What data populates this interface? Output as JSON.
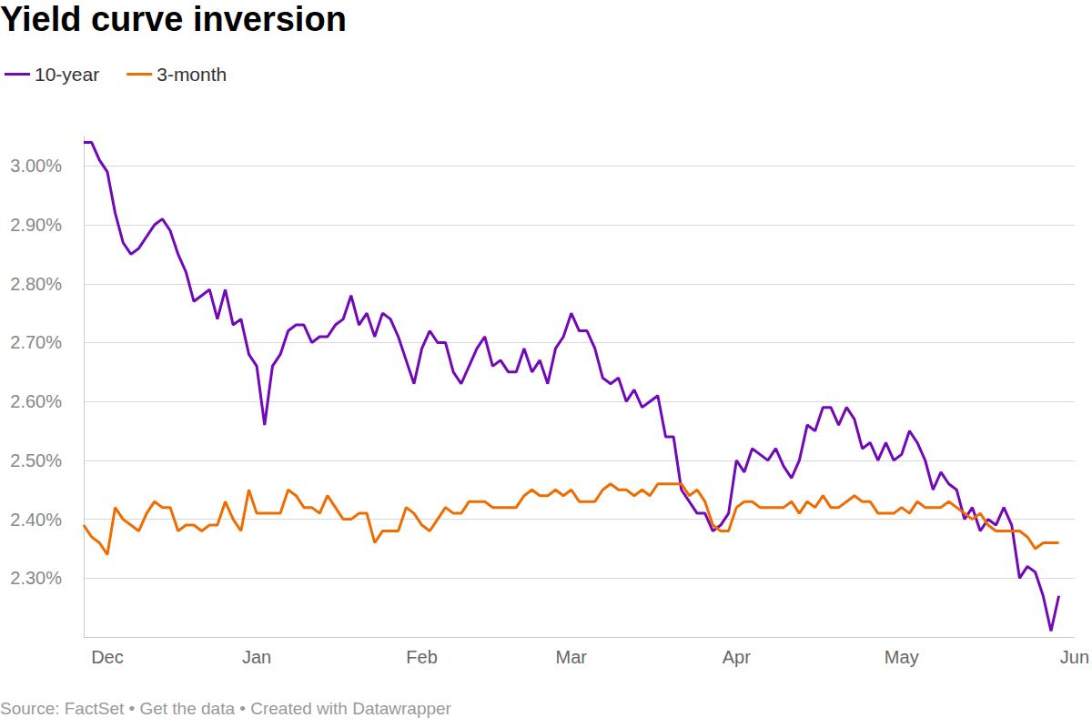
{
  "chart_data": {
    "type": "line",
    "title": "Yield curve inversion",
    "footer": "Source: FactSet • Get the data • Created with Datawrapper",
    "legend": "top-left",
    "grid": true,
    "categories": [
      null,
      null,
      null,
      "Dec",
      null,
      null,
      null,
      null,
      null,
      null,
      null,
      null,
      null,
      null,
      null,
      null,
      null,
      null,
      null,
      null,
      null,
      null,
      "Jan",
      null,
      null,
      null,
      null,
      null,
      null,
      null,
      null,
      null,
      null,
      null,
      null,
      null,
      null,
      null,
      null,
      null,
      null,
      null,
      null,
      "Feb",
      null,
      null,
      null,
      null,
      null,
      null,
      null,
      null,
      null,
      null,
      null,
      null,
      null,
      null,
      null,
      null,
      null,
      null,
      "Mar",
      null,
      null,
      null,
      null,
      null,
      null,
      null,
      null,
      null,
      null,
      null,
      null,
      null,
      null,
      null,
      null,
      null,
      null,
      null,
      null,
      "Apr",
      null,
      null,
      null,
      null,
      null,
      null,
      null,
      null,
      null,
      null,
      null,
      null,
      null,
      null,
      null,
      null,
      null,
      null,
      null,
      null,
      "May",
      null,
      null,
      null,
      null,
      null,
      null,
      null,
      null,
      null,
      null,
      null,
      null,
      null,
      null,
      null,
      null,
      null,
      null,
      null,
      null,
      null,
      "Jun"
    ],
    "series": [
      {
        "name": "10-year",
        "color": "#7209b7",
        "values": [
          3.04,
          3.04,
          3.01,
          2.99,
          2.92,
          2.87,
          2.85,
          2.86,
          2.88,
          2.9,
          2.91,
          2.89,
          2.85,
          2.82,
          2.77,
          2.78,
          2.79,
          2.74,
          2.79,
          2.73,
          2.74,
          2.68,
          2.66,
          2.56,
          2.66,
          2.68,
          2.72,
          2.73,
          2.73,
          2.7,
          2.71,
          2.71,
          2.73,
          2.74,
          2.78,
          2.73,
          2.75,
          2.71,
          2.75,
          2.74,
          2.71,
          2.67,
          2.63,
          2.69,
          2.72,
          2.7,
          2.7,
          2.65,
          2.63,
          2.66,
          2.69,
          2.71,
          2.66,
          2.67,
          2.65,
          2.65,
          2.69,
          2.65,
          2.67,
          2.63,
          2.69,
          2.71,
          2.75,
          2.72,
          2.72,
          2.69,
          2.64,
          2.63,
          2.64,
          2.6,
          2.62,
          2.59,
          2.6,
          2.61,
          2.54,
          2.54,
          2.45,
          2.43,
          2.41,
          2.41,
          2.38,
          2.39,
          2.41,
          2.5,
          2.48,
          2.52,
          2.51,
          2.5,
          2.52,
          2.49,
          2.47,
          2.5,
          2.56,
          2.55,
          2.59,
          2.59,
          2.56,
          2.59,
          2.57,
          2.52,
          2.53,
          2.5,
          2.53,
          2.5,
          2.51,
          2.55,
          2.53,
          2.5,
          2.45,
          2.48,
          2.46,
          2.45,
          2.4,
          2.42,
          2.38,
          2.4,
          2.39,
          2.42,
          2.39,
          2.3,
          2.32,
          2.31,
          2.27,
          2.21,
          2.27,
          null,
          null
        ]
      },
      {
        "name": "3-month",
        "color": "#ef6c00",
        "values": [
          2.39,
          2.37,
          2.36,
          2.34,
          2.42,
          2.4,
          2.39,
          2.38,
          2.41,
          2.43,
          2.42,
          2.42,
          2.38,
          2.39,
          2.39,
          2.38,
          2.39,
          2.39,
          2.43,
          2.4,
          2.38,
          2.45,
          2.41,
          2.41,
          2.41,
          2.41,
          2.45,
          2.44,
          2.42,
          2.42,
          2.41,
          2.44,
          2.42,
          2.4,
          2.4,
          2.41,
          2.41,
          2.36,
          2.38,
          2.38,
          2.38,
          2.42,
          2.41,
          2.39,
          2.38,
          2.4,
          2.42,
          2.41,
          2.41,
          2.43,
          2.43,
          2.43,
          2.42,
          2.42,
          2.42,
          2.42,
          2.44,
          2.45,
          2.44,
          2.44,
          2.45,
          2.44,
          2.45,
          2.43,
          2.43,
          2.43,
          2.45,
          2.46,
          2.45,
          2.45,
          2.44,
          2.45,
          2.44,
          2.46,
          2.46,
          2.46,
          2.46,
          2.44,
          2.45,
          2.43,
          2.39,
          2.38,
          2.38,
          2.42,
          2.43,
          2.43,
          2.42,
          2.42,
          2.42,
          2.42,
          2.43,
          2.41,
          2.43,
          2.42,
          2.44,
          2.42,
          2.42,
          2.43,
          2.44,
          2.43,
          2.43,
          2.41,
          2.41,
          2.41,
          2.42,
          2.41,
          2.43,
          2.42,
          2.42,
          2.42,
          2.43,
          2.42,
          2.41,
          2.4,
          2.41,
          2.39,
          2.38,
          2.38,
          2.38,
          2.38,
          2.37,
          2.35,
          2.36,
          2.36,
          2.36,
          null,
          null
        ]
      }
    ],
    "ylim": [
      2.2,
      3.05
    ],
    "yticks": [
      {
        "value": 2.3,
        "label": "2.30%"
      },
      {
        "value": 2.4,
        "label": "2.40%"
      },
      {
        "value": 2.5,
        "label": "2.50%"
      },
      {
        "value": 2.6,
        "label": "2.60%"
      },
      {
        "value": 2.7,
        "label": "2.70%"
      },
      {
        "value": 2.8,
        "label": "2.80%"
      },
      {
        "value": 2.9,
        "label": "2.90%"
      },
      {
        "value": 3.0,
        "label": "3.00%"
      }
    ]
  }
}
